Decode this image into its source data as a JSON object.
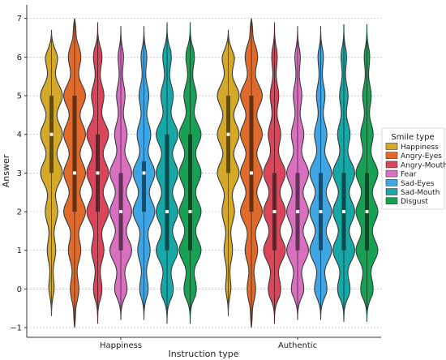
{
  "chart_data": {
    "type": "violin",
    "xlabel": "Instruction type",
    "ylabel": "Answer",
    "yticks": [
      -1,
      0,
      1,
      2,
      3,
      4,
      5,
      6,
      7
    ],
    "ylim": [
      -1.25,
      7.35
    ],
    "grid": true,
    "legend_title": "Smile type",
    "legend_position": "right",
    "categories": [
      "Happiness",
      "Authentic"
    ],
    "series": [
      {
        "name": "Happiness",
        "color": "#d4a829",
        "stats": [
          {
            "median": 4,
            "q1": 3,
            "q3": 5,
            "min": -0.7,
            "max": 6.7
          },
          {
            "median": 4,
            "q1": 3,
            "q3": 5,
            "min": -0.7,
            "max": 6.7
          }
        ]
      },
      {
        "name": "Angry-Eyes",
        "color": "#e06a2c",
        "stats": [
          {
            "median": 3,
            "q1": 2,
            "q3": 5,
            "min": -1,
            "max": 7
          },
          {
            "median": 3,
            "q1": 2,
            "q3": 5,
            "min": -1,
            "max": 7
          }
        ]
      },
      {
        "name": "Angry-Mouth",
        "color": "#d9465a",
        "stats": [
          {
            "median": 3,
            "q1": 2,
            "q3": 4,
            "min": -0.9,
            "max": 6.9
          },
          {
            "median": 2,
            "q1": 1,
            "q3": 3,
            "min": -0.9,
            "max": 6.9
          }
        ]
      },
      {
        "name": "Fear",
        "color": "#d86fbf",
        "stats": [
          {
            "median": 2,
            "q1": 1,
            "q3": 3,
            "min": -0.8,
            "max": 6.8
          },
          {
            "median": 2,
            "q1": 1,
            "q3": 3,
            "min": -0.8,
            "max": 6.8
          }
        ]
      },
      {
        "name": "Sad-Eyes",
        "color": "#3fa6e3",
        "stats": [
          {
            "median": 3,
            "q1": 2,
            "q3": 3.3,
            "min": -0.8,
            "max": 6.8
          },
          {
            "median": 2,
            "q1": 1,
            "q3": 3,
            "min": -0.8,
            "max": 6.8
          }
        ]
      },
      {
        "name": "Sad-Mouth",
        "color": "#18a7a7",
        "stats": [
          {
            "median": 2,
            "q1": 1,
            "q3": 4,
            "min": -0.9,
            "max": 6.9
          },
          {
            "median": 2,
            "q1": 1,
            "q3": 3,
            "min": -0.85,
            "max": 6.85
          }
        ]
      },
      {
        "name": "Disgust",
        "color": "#16a155",
        "stats": [
          {
            "median": 2,
            "q1": 1,
            "q3": 4,
            "min": -0.9,
            "max": 6.9
          },
          {
            "median": 2,
            "q1": 1,
            "q3": 3,
            "min": -0.85,
            "max": 6.85
          }
        ]
      }
    ]
  }
}
